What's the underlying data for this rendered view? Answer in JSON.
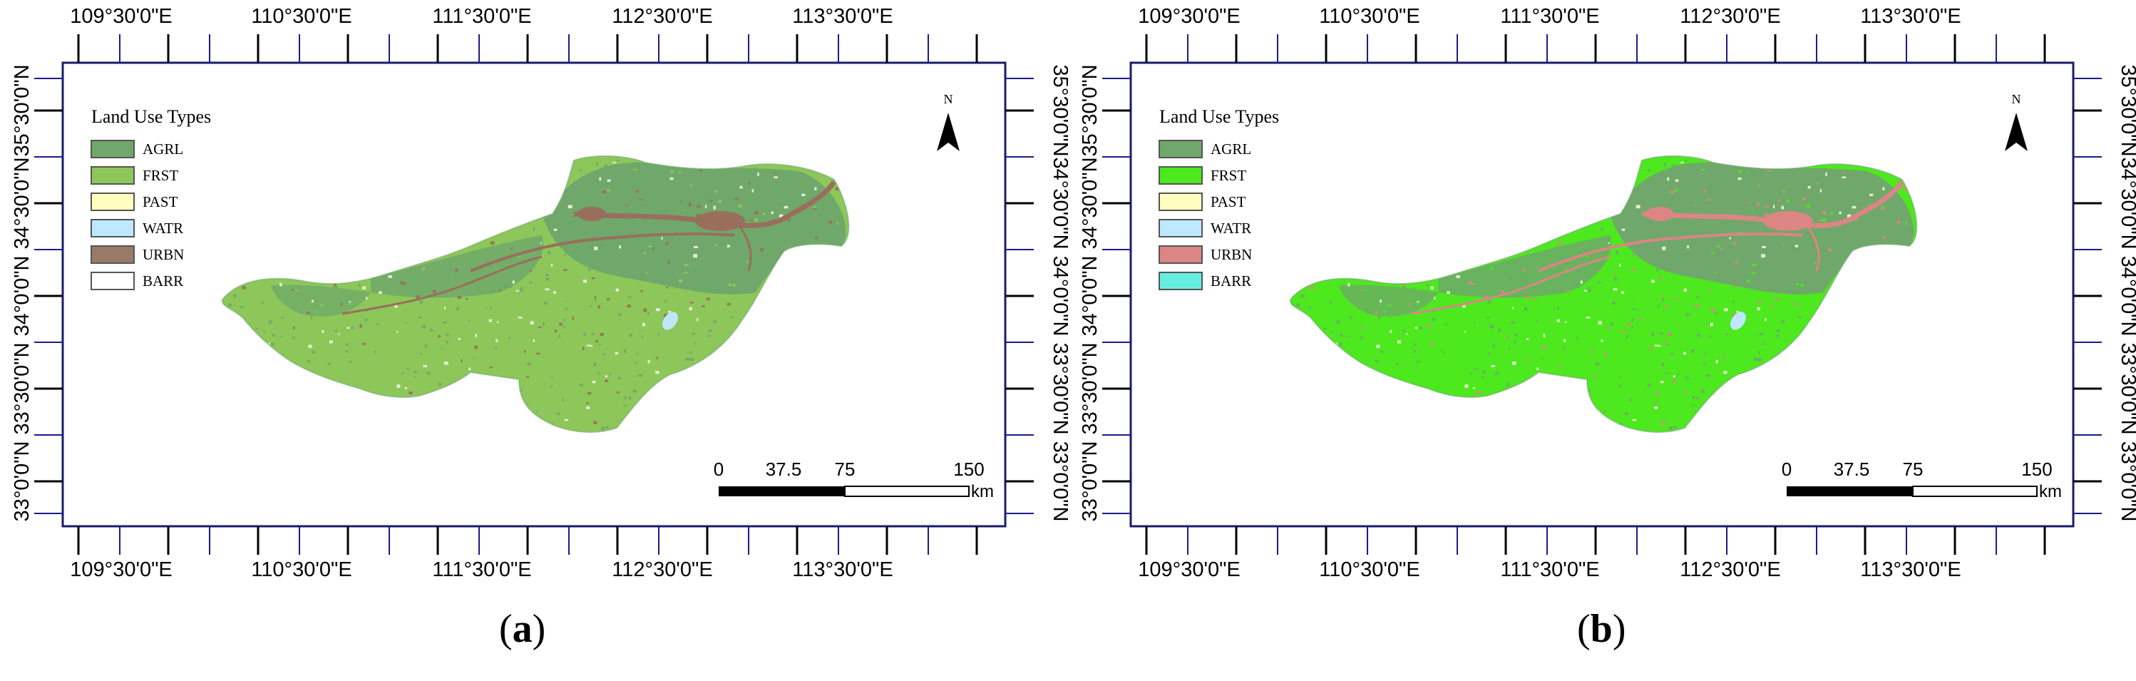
{
  "panels": [
    {
      "id": "a",
      "caption_open": "(",
      "caption_letter": "a",
      "caption_close": ")",
      "legend_title": "Land Use Types",
      "legend": [
        {
          "label": "AGRL",
          "color": "#6fa86a"
        },
        {
          "label": "FRST",
          "color": "#8dc75a"
        },
        {
          "label": "PAST",
          "color": "#fffebf"
        },
        {
          "label": "WATR",
          "color": "#bee8ff"
        },
        {
          "label": "URBN",
          "color": "#9a7a66"
        },
        {
          "label": "BARR",
          "color": "#ffffff"
        }
      ],
      "region_colors": {
        "base": "#8dc75a",
        "agri": "#6fa86a",
        "urban": "#9a6e5c",
        "water": "#bee8ff",
        "speck": "#f2f6df"
      }
    },
    {
      "id": "b",
      "caption_open": "(",
      "caption_letter": "b",
      "caption_close": ")",
      "legend_title": "Land Use Types",
      "legend": [
        {
          "label": "AGRL",
          "color": "#6fa86a"
        },
        {
          "label": "FRST",
          "color": "#4de81e"
        },
        {
          "label": "PAST",
          "color": "#fffebf"
        },
        {
          "label": "WATR",
          "color": "#bee8ff"
        },
        {
          "label": "URBN",
          "color": "#db8585"
        },
        {
          "label": "BARR",
          "color": "#66ede0"
        }
      ],
      "region_colors": {
        "base": "#4de81e",
        "agri": "#6fa86a",
        "urban": "#db8585",
        "water": "#bee8ff",
        "speck": "#f2f6df"
      }
    }
  ],
  "lon_labels": [
    "109°30'0\"E",
    "110°30'0\"E",
    "111°30'0\"E",
    "112°30'0\"E",
    "113°30'0\"E"
  ],
  "lat_labels": [
    "35°30'0\"N",
    "35°0'0\"N",
    "34°30'0\"N",
    "34°0'0\"N",
    "33°30'0\"N",
    "33°0'0\"N"
  ],
  "north_label": "N",
  "scale_labels": [
    "0",
    "37.5",
    "75",
    "150"
  ],
  "scale_unit": "km"
}
